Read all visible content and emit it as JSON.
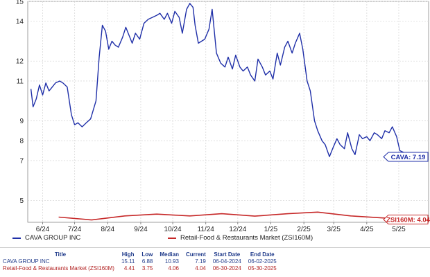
{
  "chart_data": {
    "type": "line",
    "y_ticks": [
      "15",
      "14",
      "12",
      "11",
      "9",
      "8",
      "7",
      "5"
    ],
    "x_ticks": [
      "6/24",
      "7/24",
      "8/24",
      "9/24",
      "10/24",
      "11/24",
      "12/24",
      "1/25",
      "2/25",
      "3/25",
      "4/25",
      "5/25"
    ],
    "ylim": [
      3.9,
      15.0
    ],
    "grid": true,
    "legend": "bottom",
    "series": [
      {
        "name": "CAVA GROUP INC",
        "color": "#1f2fa8",
        "callout": "CAVA: 7.19",
        "x": [
          "2024-06-04",
          "2024-06-06",
          "2024-06-09",
          "2024-06-12",
          "2024-06-15",
          "2024-06-18",
          "2024-06-21",
          "2024-06-24",
          "2024-06-27",
          "2024-07-01",
          "2024-07-04",
          "2024-07-08",
          "2024-07-12",
          "2024-07-15",
          "2024-07-18",
          "2024-07-22",
          "2024-07-26",
          "2024-07-30",
          "2024-08-04",
          "2024-08-07",
          "2024-08-10",
          "2024-08-13",
          "2024-08-16",
          "2024-08-19",
          "2024-08-22",
          "2024-08-25",
          "2024-08-29",
          "2024-09-01",
          "2024-09-04",
          "2024-09-07",
          "2024-09-10",
          "2024-09-14",
          "2024-09-18",
          "2024-09-22",
          "2024-09-26",
          "2024-09-30",
          "2024-10-03",
          "2024-10-07",
          "2024-10-10",
          "2024-10-14",
          "2024-10-17",
          "2024-10-21",
          "2024-10-24",
          "2024-10-28",
          "2024-10-31",
          "2024-11-03",
          "2024-11-05",
          "2024-11-08",
          "2024-11-11",
          "2024-11-14",
          "2024-11-18",
          "2024-11-21",
          "2024-11-25",
          "2024-11-29",
          "2024-12-03",
          "2024-12-06",
          "2024-12-10",
          "2024-12-13",
          "2024-12-17",
          "2024-12-20",
          "2024-12-24",
          "2024-12-27",
          "2024-12-31",
          "2025-01-03",
          "2025-01-07",
          "2025-01-10",
          "2025-01-14",
          "2025-01-17",
          "2025-01-21",
          "2025-01-24",
          "2025-01-28",
          "2025-01-31",
          "2025-02-04",
          "2025-02-07",
          "2025-02-11",
          "2025-02-14",
          "2025-02-18",
          "2025-02-21",
          "2025-02-25",
          "2025-02-28",
          "2025-03-04",
          "2025-03-07",
          "2025-03-11",
          "2025-03-14",
          "2025-03-18",
          "2025-03-21",
          "2025-03-25",
          "2025-03-28",
          "2025-04-01",
          "2025-04-04",
          "2025-04-08",
          "2025-04-11",
          "2025-04-15",
          "2025-04-18",
          "2025-04-22",
          "2025-04-25",
          "2025-04-29",
          "2025-05-02",
          "2025-05-06",
          "2025-05-09",
          "2025-05-13",
          "2025-05-16",
          "2025-05-20",
          "2025-05-23",
          "2025-05-27",
          "2025-05-30",
          "2025-06-02"
        ],
        "y": [
          10.6,
          9.7,
          10.1,
          10.8,
          10.3,
          10.9,
          10.5,
          10.7,
          10.9,
          11.0,
          10.9,
          10.7,
          9.3,
          8.8,
          8.9,
          8.7,
          8.9,
          9.1,
          10.0,
          12.2,
          13.8,
          13.5,
          12.6,
          13.0,
          12.8,
          12.7,
          13.2,
          13.7,
          13.3,
          12.9,
          13.4,
          13.1,
          13.9,
          14.1,
          14.2,
          14.3,
          14.4,
          14.1,
          14.4,
          13.9,
          14.5,
          14.2,
          13.4,
          14.6,
          14.9,
          14.7,
          13.8,
          12.9,
          13.0,
          13.1,
          13.6,
          14.6,
          12.4,
          11.9,
          11.7,
          12.2,
          11.6,
          12.3,
          11.7,
          11.5,
          11.7,
          11.3,
          11.0,
          12.1,
          11.7,
          11.3,
          11.5,
          11.1,
          12.4,
          11.8,
          12.7,
          13.0,
          12.4,
          12.9,
          13.4,
          12.6,
          11.0,
          10.5,
          9.0,
          8.5,
          8.0,
          7.8,
          7.2,
          7.6,
          8.1,
          7.8,
          7.6,
          8.4,
          7.6,
          7.3,
          8.3,
          8.1,
          8.2,
          8.0,
          8.4,
          8.3,
          8.1,
          8.5,
          8.4,
          8.7,
          8.2,
          7.5,
          7.4,
          7.3,
          7.2,
          7.2,
          7.19
        ]
      },
      {
        "name": "Retail-Food & Restaurants Market (ZSI160M)",
        "color": "#c62828",
        "callout": "ZSI160M: 4.04",
        "x": [
          "2024-06-30",
          "2024-07-31",
          "2024-08-31",
          "2024-09-30",
          "2024-10-31",
          "2024-11-30",
          "2024-12-31",
          "2025-01-31",
          "2025-02-28",
          "2025-03-31",
          "2025-04-30",
          "2025-05-30"
        ],
        "y": [
          4.16,
          4.02,
          4.22,
          4.31,
          4.22,
          4.33,
          4.21,
          4.33,
          4.41,
          4.22,
          4.12,
          4.04
        ]
      }
    ]
  },
  "stats": {
    "headers": [
      "Title",
      "High",
      "Low",
      "Median",
      "Current",
      "Start Date",
      "End Date"
    ],
    "rows": [
      [
        "CAVA GROUP INC",
        "15.11",
        "6.88",
        "10.93",
        "7.19",
        "06-04-2024",
        "06-02-2025"
      ],
      [
        "Retail-Food & Restaurants Market (ZSI160M)",
        "4.41",
        "3.75",
        "4.06",
        "4.04",
        "06-30-2024",
        "05-30-2025"
      ]
    ]
  }
}
